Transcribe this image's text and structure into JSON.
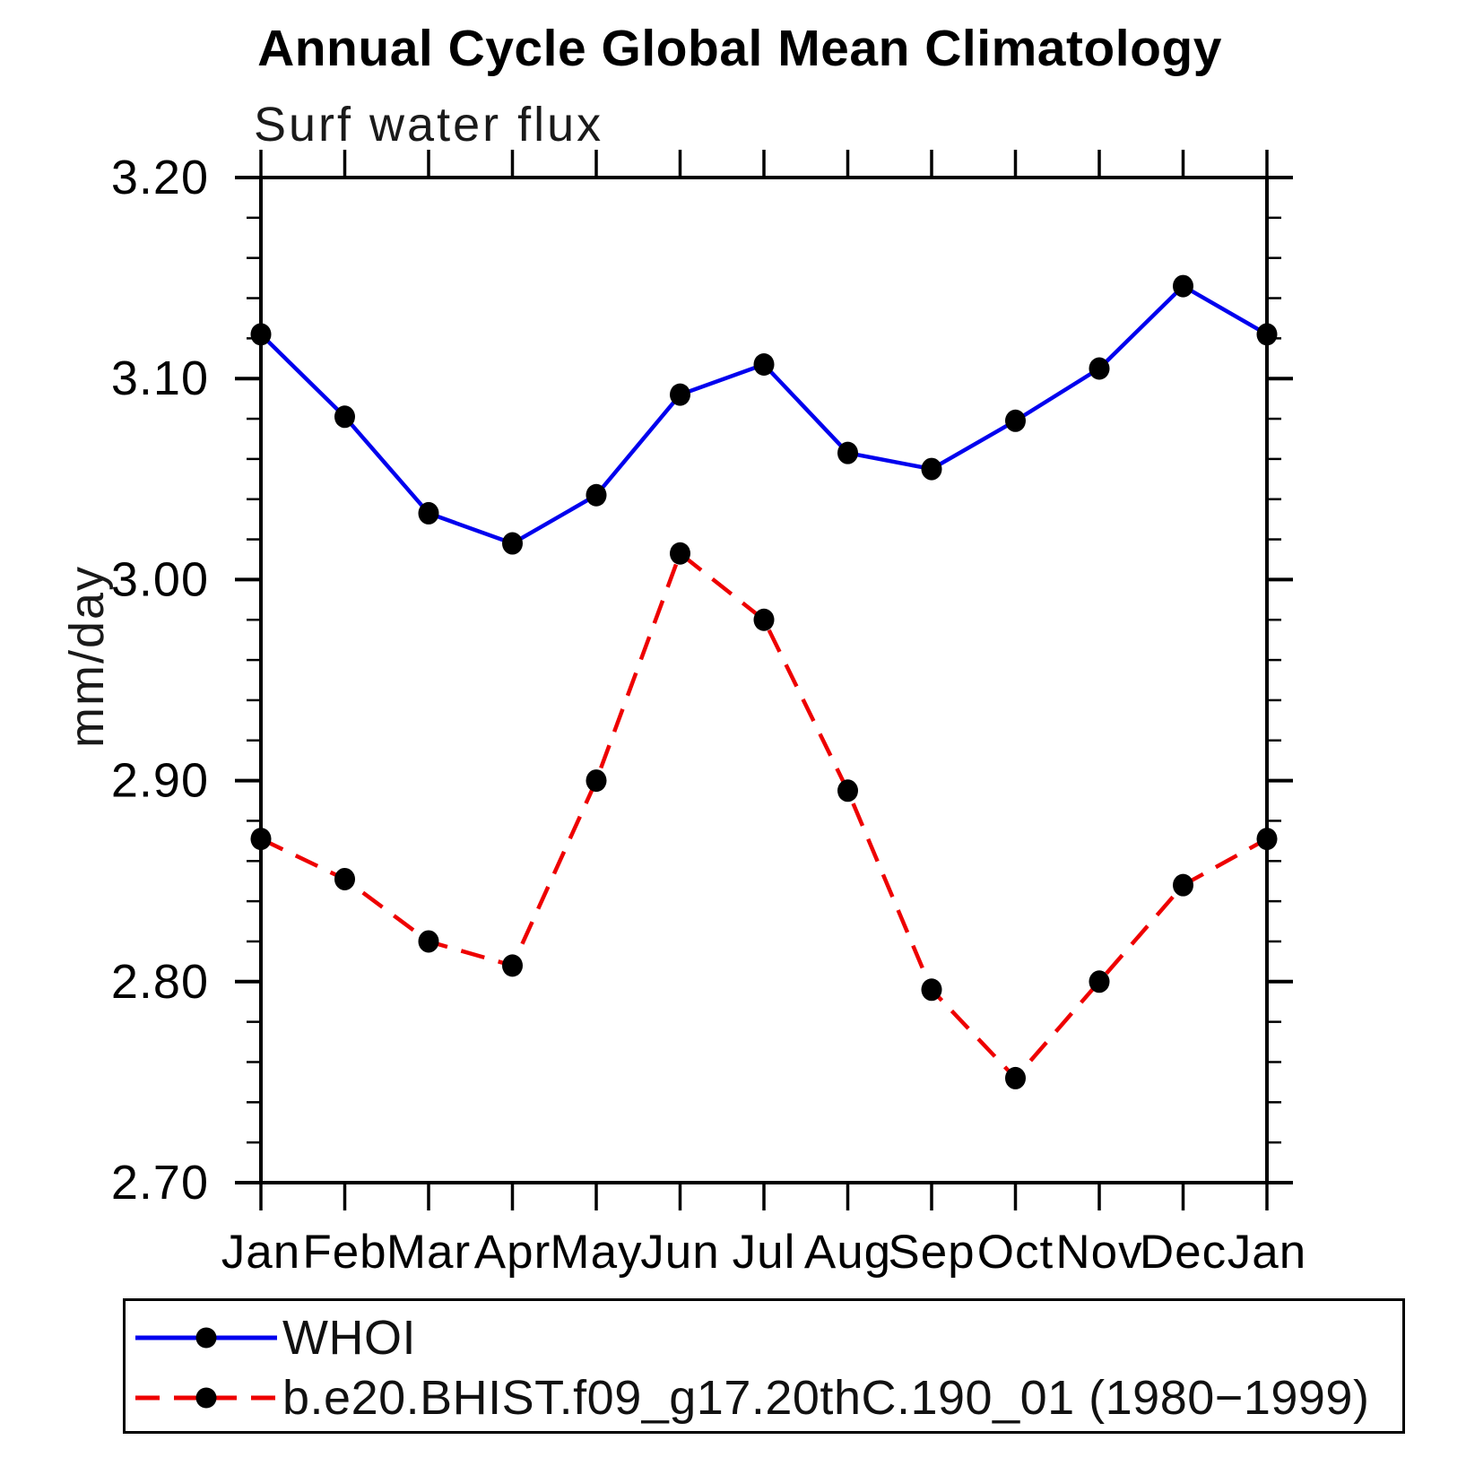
{
  "chart": {
    "title": "Annual Cycle Global Mean Climatology",
    "subtitle": "Surf water flux",
    "ylabel": "mm/day"
  },
  "chart_data": {
    "type": "line",
    "title": "Annual Cycle Global Mean Climatology",
    "subtitle": "Surf water flux",
    "xlabel": "",
    "ylabel": "mm/day",
    "ylim": [
      2.7,
      3.2
    ],
    "ytick_labels": [
      "2.70",
      "2.80",
      "2.90",
      "3.00",
      "3.10",
      "3.20"
    ],
    "ytick_major_step": 0.1,
    "ytick_minor_step": 0.02,
    "grid": false,
    "legend_position": "bottom",
    "categories": [
      "Jan",
      "Feb",
      "Mar",
      "Apr",
      "May",
      "Jun",
      "Jul",
      "Aug",
      "Sep",
      "Oct",
      "Nov",
      "Dec",
      "Jan"
    ],
    "axis_color": "#000000",
    "marker_color": "#000000",
    "series": [
      {
        "name": "WHOI",
        "color": "#0000ee",
        "line_style": "solid",
        "marker": "circle",
        "values": [
          3.122,
          3.081,
          3.033,
          3.018,
          3.042,
          3.092,
          3.107,
          3.063,
          3.055,
          3.079,
          3.105,
          3.146,
          3.122
        ]
      },
      {
        "name": "b.e20.BHIST.f09_g17.20thC.190_01 (1980−1999)",
        "color": "#ee0000",
        "line_style": "dashed",
        "marker": "circle",
        "values": [
          2.871,
          2.851,
          2.82,
          2.808,
          2.9,
          3.013,
          2.98,
          2.895,
          2.796,
          2.752,
          2.8,
          2.848,
          2.871
        ]
      }
    ]
  }
}
